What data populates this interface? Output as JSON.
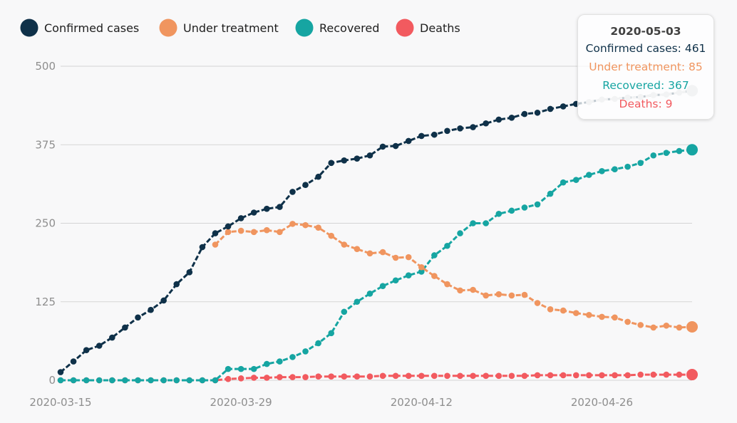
{
  "chart_data": {
    "type": "line",
    "title": "",
    "xlabel": "",
    "ylabel": "",
    "ylim": [
      0,
      500
    ],
    "yticks": [
      0,
      125,
      250,
      375,
      500
    ],
    "xticks": [
      "2020-03-15",
      "2020-03-29",
      "2020-04-12",
      "2020-04-26"
    ],
    "grid": "horizontal",
    "legend_position": "top-left",
    "x_start": "2020-03-15",
    "x": [
      "2020-03-15",
      "2020-03-16",
      "2020-03-17",
      "2020-03-18",
      "2020-03-19",
      "2020-03-20",
      "2020-03-21",
      "2020-03-22",
      "2020-03-23",
      "2020-03-24",
      "2020-03-25",
      "2020-03-26",
      "2020-03-27",
      "2020-03-28",
      "2020-03-29",
      "2020-03-30",
      "2020-03-31",
      "2020-04-01",
      "2020-04-02",
      "2020-04-03",
      "2020-04-04",
      "2020-04-05",
      "2020-04-06",
      "2020-04-07",
      "2020-04-08",
      "2020-04-09",
      "2020-04-10",
      "2020-04-11",
      "2020-04-12",
      "2020-04-13",
      "2020-04-14",
      "2020-04-15",
      "2020-04-16",
      "2020-04-17",
      "2020-04-18",
      "2020-04-19",
      "2020-04-20",
      "2020-04-21",
      "2020-04-22",
      "2020-04-23",
      "2020-04-24",
      "2020-04-25",
      "2020-04-26",
      "2020-04-27",
      "2020-04-28",
      "2020-04-29",
      "2020-04-30",
      "2020-05-01",
      "2020-05-02",
      "2020-05-03"
    ],
    "series": [
      {
        "name": "Confirmed cases",
        "color": "#0f3149",
        "values": [
          13,
          30,
          48,
          55,
          68,
          84,
          100,
          112,
          127,
          153,
          172,
          212,
          234,
          245,
          258,
          267,
          273,
          276,
          300,
          311,
          324,
          346,
          350,
          353,
          358,
          372,
          373,
          381,
          389,
          391,
          397,
          401,
          403,
          409,
          415,
          418,
          424,
          426,
          432,
          436,
          440,
          443,
          447,
          448,
          450,
          451,
          454,
          455,
          458,
          461
        ]
      },
      {
        "name": "Under treatment",
        "color": "#f0955f",
        "values": [
          null,
          null,
          null,
          null,
          null,
          null,
          null,
          null,
          null,
          null,
          null,
          null,
          216,
          236,
          238,
          236,
          239,
          236,
          249,
          247,
          243,
          230,
          216,
          209,
          202,
          204,
          195,
          196,
          180,
          166,
          153,
          143,
          144,
          135,
          137,
          135,
          136,
          123,
          113,
          111,
          107,
          104,
          101,
          100,
          93,
          88,
          84,
          87,
          84,
          85
        ]
      },
      {
        "name": "Recovered",
        "color": "#16a5a2",
        "values": [
          0,
          0,
          0,
          0,
          0,
          0,
          0,
          0,
          0,
          0,
          0,
          0,
          0,
          18,
          18,
          18,
          26,
          30,
          37,
          46,
          59,
          75,
          109,
          125,
          138,
          150,
          159,
          167,
          173,
          199,
          214,
          234,
          250,
          250,
          265,
          270,
          275,
          280,
          297,
          315,
          319,
          327,
          333,
          336,
          340,
          346,
          358,
          362,
          365,
          367
        ]
      },
      {
        "name": "Deaths",
        "color": "#f25a5f",
        "values": [
          0,
          0,
          0,
          0,
          0,
          0,
          0,
          0,
          0,
          0,
          0,
          0,
          0,
          2,
          3,
          4,
          4,
          5,
          5,
          5,
          6,
          6,
          6,
          6,
          6,
          7,
          7,
          7,
          7,
          7,
          7,
          7,
          7,
          7,
          7,
          7,
          7,
          8,
          8,
          8,
          8,
          8,
          8,
          8,
          8,
          9,
          9,
          9,
          9,
          9
        ]
      }
    ],
    "highlight_index": 49
  },
  "tooltip": {
    "date": "2020-05-03",
    "lines": [
      {
        "label": "Confirmed cases: 461",
        "color": "#0f3149"
      },
      {
        "label": "Under treatment: 85",
        "color": "#f0955f"
      },
      {
        "label": "Recovered: 367",
        "color": "#16a5a2"
      },
      {
        "label": "Deaths: 9",
        "color": "#f25a5f"
      }
    ]
  },
  "colors": {
    "background": "#f8f8f9",
    "grid": "#d5d5d5",
    "tick_text": "#8e8e8e",
    "hover_point": "#cdd1d5"
  }
}
